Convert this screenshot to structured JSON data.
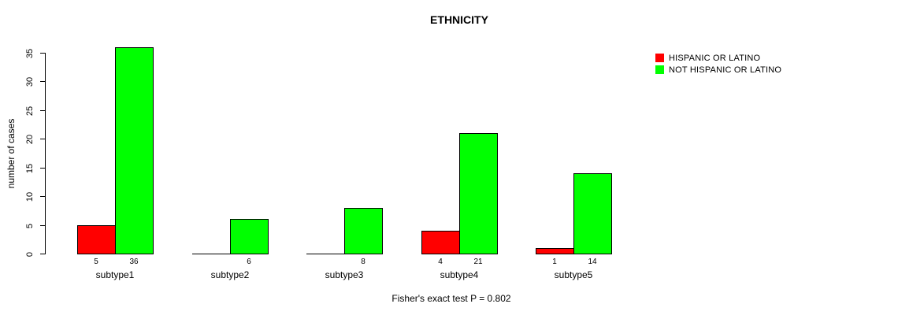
{
  "title": "ETHNICITY",
  "ylabel": "number of cases",
  "footer": "Fisher's exact test P = 0.802",
  "legend": [
    {
      "label": "HISPANIC OR LATINO",
      "color": "#ff0000",
      "icon": "red-square-swatch"
    },
    {
      "label": "NOT HISPANIC OR LATINO",
      "color": "#00ff00",
      "icon": "green-square-swatch"
    }
  ],
  "chart_data": {
    "type": "bar",
    "title": "ETHNICITY",
    "xlabel": "",
    "ylabel": "number of cases",
    "categories": [
      "subtype1",
      "subtype2",
      "subtype3",
      "subtype4",
      "subtype5"
    ],
    "series": [
      {
        "name": "HISPANIC OR LATINO",
        "color": "#ff0000",
        "values": [
          5,
          0,
          0,
          4,
          1
        ]
      },
      {
        "name": "NOT HISPANIC OR LATINO",
        "color": "#00ff00",
        "values": [
          36,
          6,
          8,
          21,
          14
        ]
      }
    ],
    "ylim": [
      0,
      35
    ],
    "yticks": [
      0,
      5,
      10,
      15,
      20,
      25,
      30,
      35
    ],
    "grid": false,
    "legend_position": "top-right",
    "bar_value_labels": true,
    "hide_zero_value_labels": true,
    "annotation": "Fisher's exact test P = 0.802"
  }
}
